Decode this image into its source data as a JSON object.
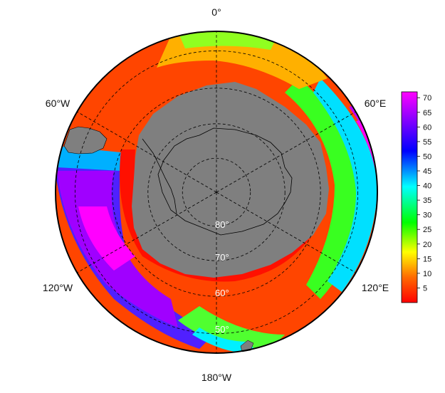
{
  "map": {
    "projection": "south-polar-stereographic",
    "longitude_labels": [
      {
        "lon": 0,
        "text": "0°"
      },
      {
        "lon": 60,
        "text": "60°E"
      },
      {
        "lon": 120,
        "text": "120°E"
      },
      {
        "lon": 180,
        "text": "180°W"
      },
      {
        "lon": -120,
        "text": "120°W"
      },
      {
        "lon": -60,
        "text": "60°W"
      }
    ],
    "latitude_labels": [
      {
        "lat": -80,
        "text": "80°"
      },
      {
        "lat": -70,
        "text": "70°"
      },
      {
        "lat": -60,
        "text": "60°"
      },
      {
        "lat": -50,
        "text": "50°"
      }
    ],
    "land_color": "#7f7f7f",
    "gridline_style": "dashed"
  },
  "colorbar": {
    "min": 0,
    "max": 72,
    "ticks": [
      5,
      10,
      15,
      20,
      25,
      30,
      35,
      40,
      45,
      50,
      55,
      60,
      65,
      70
    ],
    "tick_labels": [
      "5",
      "10",
      "15",
      "20",
      "25",
      "30",
      "35",
      "40",
      "45",
      "50",
      "55",
      "60",
      "65",
      "70"
    ],
    "colors": [
      "#ff0000",
      "#ff7a00",
      "#ffff00",
      "#00ff00",
      "#00ffff",
      "#0000ff",
      "#ff00ff"
    ]
  }
}
